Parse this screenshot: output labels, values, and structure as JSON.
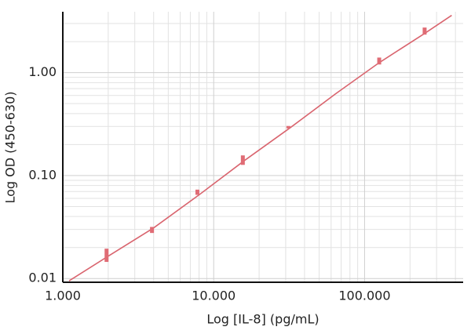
{
  "chart_data": {
    "type": "scatter",
    "x_label": "Log [IL-8] (pg/mL)",
    "y_label": "Log OD (450-630)",
    "x": [
      1.95,
      3.9,
      7.8,
      15.6,
      31.25,
      125,
      250
    ],
    "series": [
      {
        "color": "#e06c75",
        "values": [
          0.017,
          0.0297,
          0.069,
          0.142,
          0.297,
          1.3,
          2.54
        ],
        "errors": [
          0.0025,
          0.002,
          0.004,
          0.015,
          0.006,
          0.1,
          0.2
        ]
      }
    ],
    "fit": {
      "color": "#d9646e",
      "x": [
        1.1,
        2,
        4,
        8,
        16,
        32,
        64,
        125,
        250,
        378
      ],
      "y": [
        0.0095,
        0.0165,
        0.031,
        0.065,
        0.14,
        0.29,
        0.62,
        1.25,
        2.4,
        3.6
      ]
    },
    "xscale": "log",
    "yscale": "log",
    "xlim": [
      1,
      450
    ],
    "ylim": [
      0.0092,
      3.9
    ],
    "xticks": [
      {
        "value": 1,
        "label": "1.000"
      },
      {
        "value": 10,
        "label": "10.000"
      },
      {
        "value": 100,
        "label": "100.000"
      }
    ],
    "yticks": [
      0.01,
      {
        "value": 0.1,
        "label": "0.10"
      },
      {
        "value": 1,
        "label": "1.00"
      }
    ],
    "xminorticks": [
      2,
      3,
      4,
      5,
      6,
      7,
      8,
      9,
      20,
      30,
      40,
      50,
      60,
      70,
      80,
      90,
      200,
      300,
      400
    ],
    "yminorticks": [
      0.02,
      0.03,
      0.04,
      0.05,
      0.06,
      0.07,
      0.08,
      0.09,
      0.2,
      0.3,
      0.4,
      0.5,
      0.6,
      0.7,
      0.8,
      0.9,
      2,
      3
    ],
    "grid": true
  }
}
